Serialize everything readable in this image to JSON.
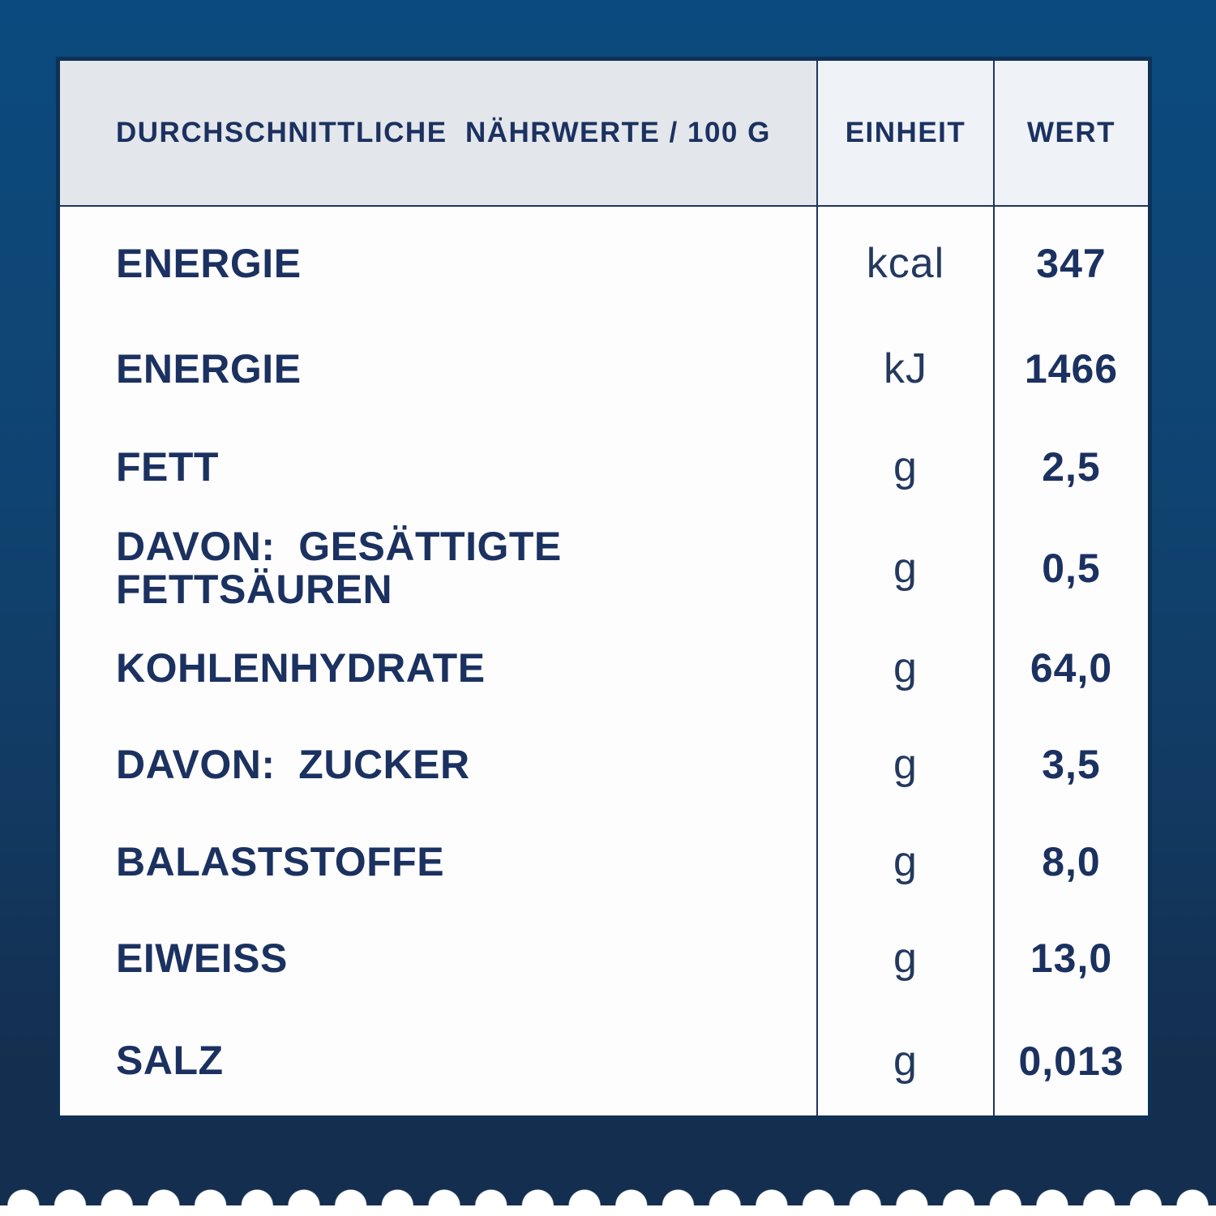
{
  "colors": {
    "background_top": "#0B4A7E",
    "background_bottom": "#142E4F",
    "card_background": "#FDFDFE",
    "header_cell_gray": "#E3E6EA",
    "header_cell_light": "#EFF2F6",
    "text_navy": "#1B3160",
    "grid_line": "#1E355F"
  },
  "table": {
    "header": {
      "nutrients": "DURCHSCHNITTLICHE  NÄHRWERTE / 100 G",
      "unit": "EINHEIT",
      "value": "WERT"
    },
    "rows": [
      {
        "label": "ENERGIE",
        "unit": "kcal",
        "value": "347"
      },
      {
        "label": "ENERGIE",
        "unit": "kJ",
        "value": "1466"
      },
      {
        "label": "FETT",
        "unit": "g",
        "value": "2,5"
      },
      {
        "label": "DAVON:  GESÄTTIGTE\nFETTSÄUREN",
        "unit": "g",
        "value": "0,5"
      },
      {
        "label": "KOHLENHYDRATE",
        "unit": "g",
        "value": "64,0"
      },
      {
        "label": "DAVON:  ZUCKER",
        "unit": "g",
        "value": "3,5"
      },
      {
        "label": "BALASTSTOFFE",
        "unit": "g",
        "value": "8,0"
      },
      {
        "label": "EIWEISS",
        "unit": "g",
        "value": "13,0"
      },
      {
        "label": "SALZ",
        "unit": "g",
        "value": "0,013"
      }
    ]
  }
}
